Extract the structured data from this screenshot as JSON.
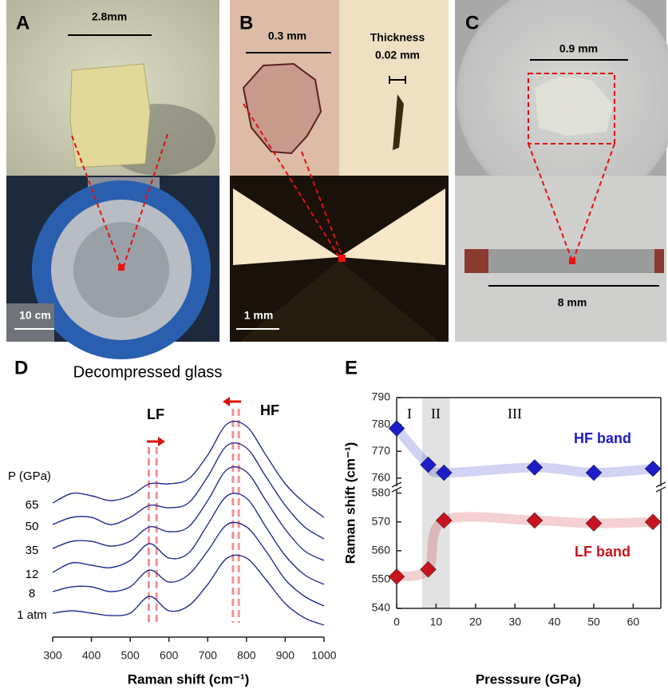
{
  "panels": {
    "A": {
      "label": "A",
      "scale_top": "2.8mm",
      "scale_bottom": "10 cm"
    },
    "B": {
      "label": "B",
      "scale_top": "0.3 mm",
      "thickness_title": "Thickness",
      "thickness": "0.02 mm",
      "scale_bottom": "1 mm"
    },
    "C": {
      "label": "C",
      "scale_top": "0.9 mm",
      "scale_bottom": "8 mm"
    }
  },
  "chart_data": [
    {
      "type": "line",
      "panel_label": "D",
      "title": "Decompressed glass",
      "x_label": "Raman shift (cm⁻¹)",
      "legend_title": "P (GPa)",
      "band_labels": [
        "LF",
        "HF"
      ],
      "peak_markers": [
        548,
        568,
        765,
        780
      ],
      "xlim": [
        300,
        1000
      ],
      "xticks": [
        300,
        400,
        500,
        600,
        700,
        800,
        900,
        1000
      ],
      "ylim": [
        0,
        100
      ],
      "x": [
        300,
        350,
        400,
        450,
        500,
        550,
        600,
        650,
        700,
        750,
        800,
        850,
        900,
        950,
        1000
      ],
      "series": [
        {
          "name": "65",
          "color": "#23308f",
          "values": [
            56,
            60,
            59,
            57,
            59,
            64,
            64,
            66,
            76,
            89,
            88,
            76,
            64,
            56,
            50
          ]
        },
        {
          "name": "50",
          "color": "#23308f",
          "values": [
            47,
            50,
            50,
            47,
            50,
            55,
            54,
            56,
            67,
            80,
            79,
            67,
            55,
            46,
            41
          ]
        },
        {
          "name": "35",
          "color": "#23308f",
          "values": [
            37,
            40,
            40,
            38,
            40,
            46,
            44,
            46,
            57,
            70,
            69,
            57,
            45,
            36,
            32
          ]
        },
        {
          "name": "12",
          "color": "#23308f",
          "values": [
            27,
            31,
            30,
            29,
            32,
            39,
            33,
            35,
            47,
            59,
            58,
            46,
            34,
            26,
            22
          ]
        },
        {
          "name": "8",
          "color": "#23308f",
          "values": [
            19,
            21,
            21,
            19,
            21,
            28,
            23,
            26,
            36,
            47,
            46,
            36,
            24,
            17,
            13
          ]
        },
        {
          "name": "1 atm",
          "color": "#23308f",
          "values": [
            10,
            11,
            10,
            9,
            10,
            17,
            11,
            13,
            22,
            33,
            33,
            24,
            14,
            8,
            5
          ]
        }
      ]
    },
    {
      "type": "scatter",
      "panel_label": "E",
      "x_label": "Presssure (GPa)",
      "y_label": "Raman shift (cm⁻¹)",
      "xlim": [
        0,
        67
      ],
      "xticks": [
        0,
        10,
        20,
        30,
        40,
        50,
        60
      ],
      "y_segments": [
        {
          "ylim": [
            757,
            790
          ],
          "yticks": [
            760,
            770,
            780,
            790
          ]
        },
        {
          "ylim": [
            540,
            581
          ],
          "yticks": [
            540,
            550,
            560,
            570,
            580
          ]
        }
      ],
      "shade": [
        6.5,
        13.5
      ],
      "regions": [
        "I",
        "II",
        "III"
      ],
      "series": [
        {
          "name": "HF band",
          "color": "#1c1cc8",
          "segment": 0,
          "x": [
            0,
            8,
            12,
            35,
            50,
            65
          ],
          "values": [
            778.5,
            765,
            762,
            764,
            762,
            763.5
          ]
        },
        {
          "name": "LF band",
          "color": "#c8141e",
          "segment": 1,
          "x": [
            0,
            8,
            12,
            35,
            50,
            65
          ],
          "values": [
            551,
            553.5,
            570.5,
            570.5,
            569.5,
            570
          ]
        }
      ]
    }
  ]
}
